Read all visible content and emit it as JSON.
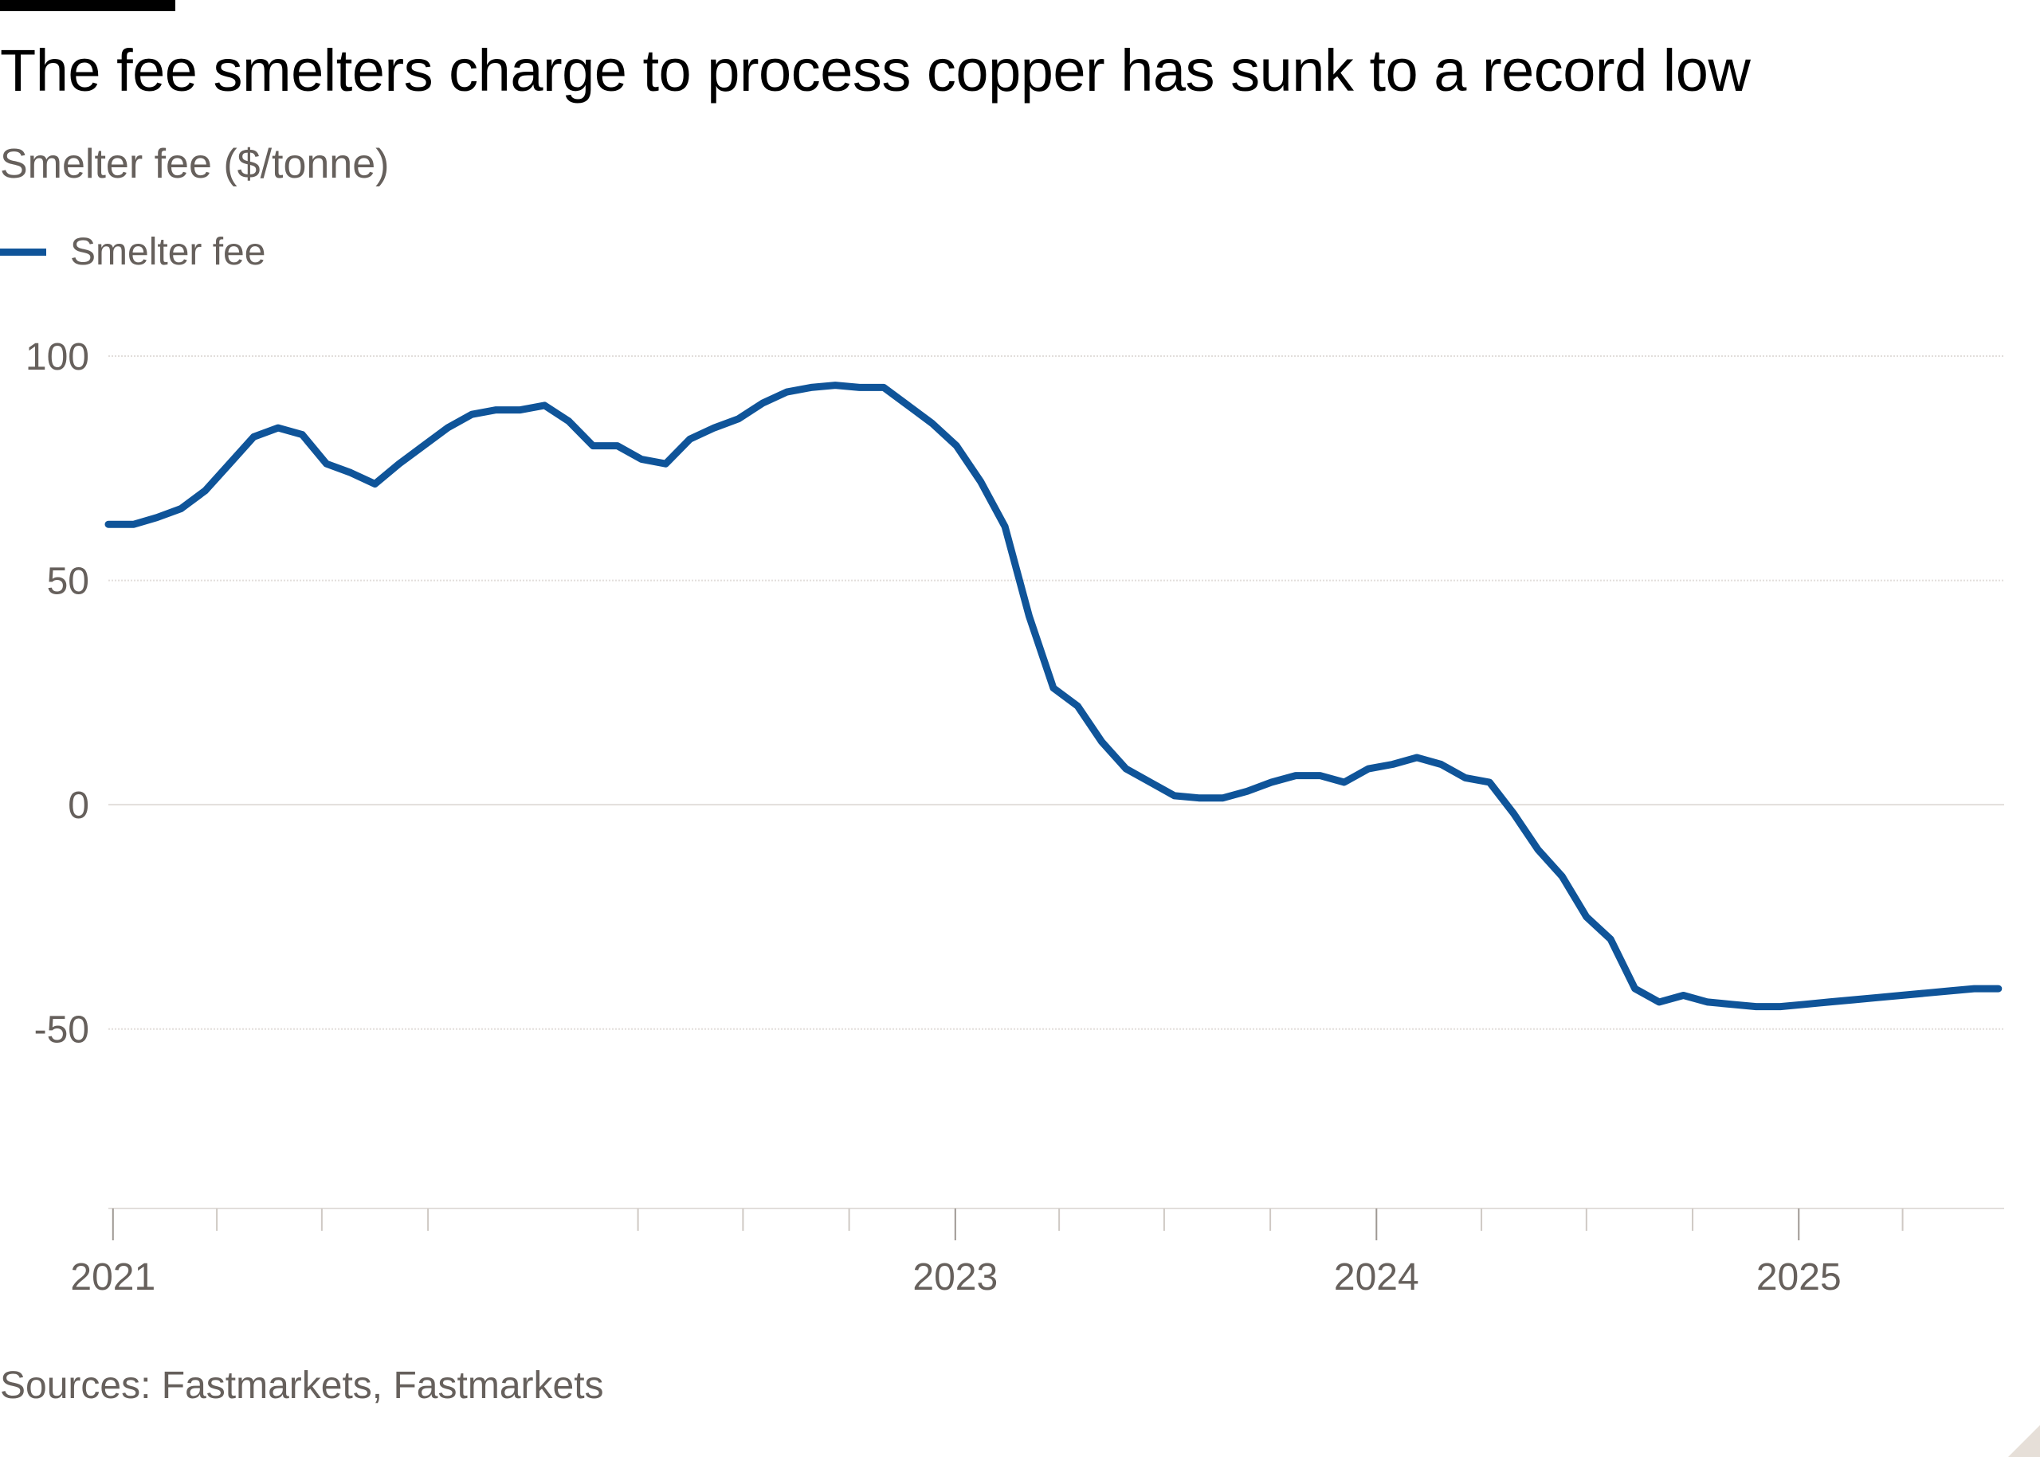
{
  "header": {
    "title": "The fee smelters charge to process copper has sunk to a record low",
    "subtitle": "Smelter fee ($/tonne)"
  },
  "footer": {
    "source": "Sources: Fastmarkets, Fastmarkets"
  },
  "colors": {
    "series": "#0f5499",
    "text": "#66605c",
    "grid": "#e2dedb"
  },
  "chart_data": {
    "type": "line",
    "title": "The fee smelters charge to process copper has sunk to a record low",
    "subtitle": "Smelter fee ($/tonne)",
    "xlabel": "",
    "ylabel": "",
    "y_ticks": [
      100,
      50,
      0,
      -50
    ],
    "y_tick_labels": [
      "100",
      "50",
      "0",
      "-50"
    ],
    "ylim": [
      -90,
      100
    ],
    "xlim": [
      "2020-12-28",
      "2025-06-28"
    ],
    "x_ticks": [
      "2021-01-01",
      "2023-01-01",
      "2024-01-01",
      "2025-01-01"
    ],
    "x_tick_labels": [
      "2021",
      "2023",
      "2024",
      "2025"
    ],
    "x_minor_ticks": [
      "2021-04-01",
      "2021-07-01",
      "2021-10-01",
      "2022-04-01",
      "2022-07-01",
      "2022-10-01",
      "2023-04-01",
      "2023-07-01",
      "2023-10-01",
      "2024-04-01",
      "2024-07-01",
      "2024-10-01",
      "2025-04-01"
    ],
    "grid": true,
    "legend_position": "top-left",
    "series": [
      {
        "name": "Smelter fee",
        "color": "#0f5499",
        "x": [
          "2020-12-28",
          "2021-01-19",
          "2021-02-08",
          "2021-03-01",
          "2021-03-22",
          "2021-04-12",
          "2021-05-03",
          "2021-05-24",
          "2021-06-14",
          "2021-07-05",
          "2021-07-26",
          "2021-08-16",
          "2021-09-06",
          "2021-09-27",
          "2021-10-18",
          "2021-11-08",
          "2021-11-29",
          "2021-12-20",
          "2022-01-10",
          "2022-01-31",
          "2022-02-21",
          "2022-03-14",
          "2022-04-04",
          "2022-04-25",
          "2022-05-16",
          "2022-06-06",
          "2022-06-27",
          "2022-07-18",
          "2022-08-08",
          "2022-08-29",
          "2022-09-19",
          "2022-10-10",
          "2022-10-31",
          "2022-11-21",
          "2022-12-12",
          "2023-01-02",
          "2023-01-23",
          "2023-02-13",
          "2023-03-06",
          "2023-03-27",
          "2023-04-17",
          "2023-05-08",
          "2023-05-29",
          "2023-06-19",
          "2023-07-10",
          "2023-07-31",
          "2023-08-21",
          "2023-09-11",
          "2023-10-02",
          "2023-10-23",
          "2023-11-13",
          "2023-12-04",
          "2023-12-25",
          "2024-01-15",
          "2024-02-05",
          "2024-02-26",
          "2024-03-18",
          "2024-04-08",
          "2024-04-29",
          "2024-05-20",
          "2024-06-10",
          "2024-07-01",
          "2024-07-22",
          "2024-08-12",
          "2024-09-02",
          "2024-09-23",
          "2024-10-14",
          "2024-11-04",
          "2024-11-25",
          "2024-12-16",
          "2025-01-06",
          "2025-01-27",
          "2025-02-17",
          "2025-03-10",
          "2025-03-31",
          "2025-04-21",
          "2025-05-12",
          "2025-06-02",
          "2025-06-23"
        ],
        "values": [
          62.5,
          62.5,
          64,
          66,
          70,
          76,
          82,
          84,
          82.5,
          76,
          74,
          71.5,
          76,
          80,
          84,
          87,
          88,
          88,
          89,
          85.5,
          80,
          80,
          77,
          76,
          81.5,
          84,
          86,
          89.5,
          92,
          93,
          93.5,
          93,
          93,
          89,
          85,
          80,
          72,
          62,
          42,
          26,
          22,
          14,
          8,
          5,
          2,
          1.5,
          1.5,
          3,
          5,
          6.5,
          6.5,
          5,
          8,
          9,
          10.5,
          9,
          6,
          5,
          -2,
          -10,
          -16,
          -25,
          -30,
          -41,
          -44,
          -42.5,
          -44,
          -44.5,
          -45,
          -45,
          -44.5,
          -44,
          -43.5,
          -43,
          -42.5,
          -42,
          -41.5,
          -41,
          -41
        ]
      }
    ]
  }
}
